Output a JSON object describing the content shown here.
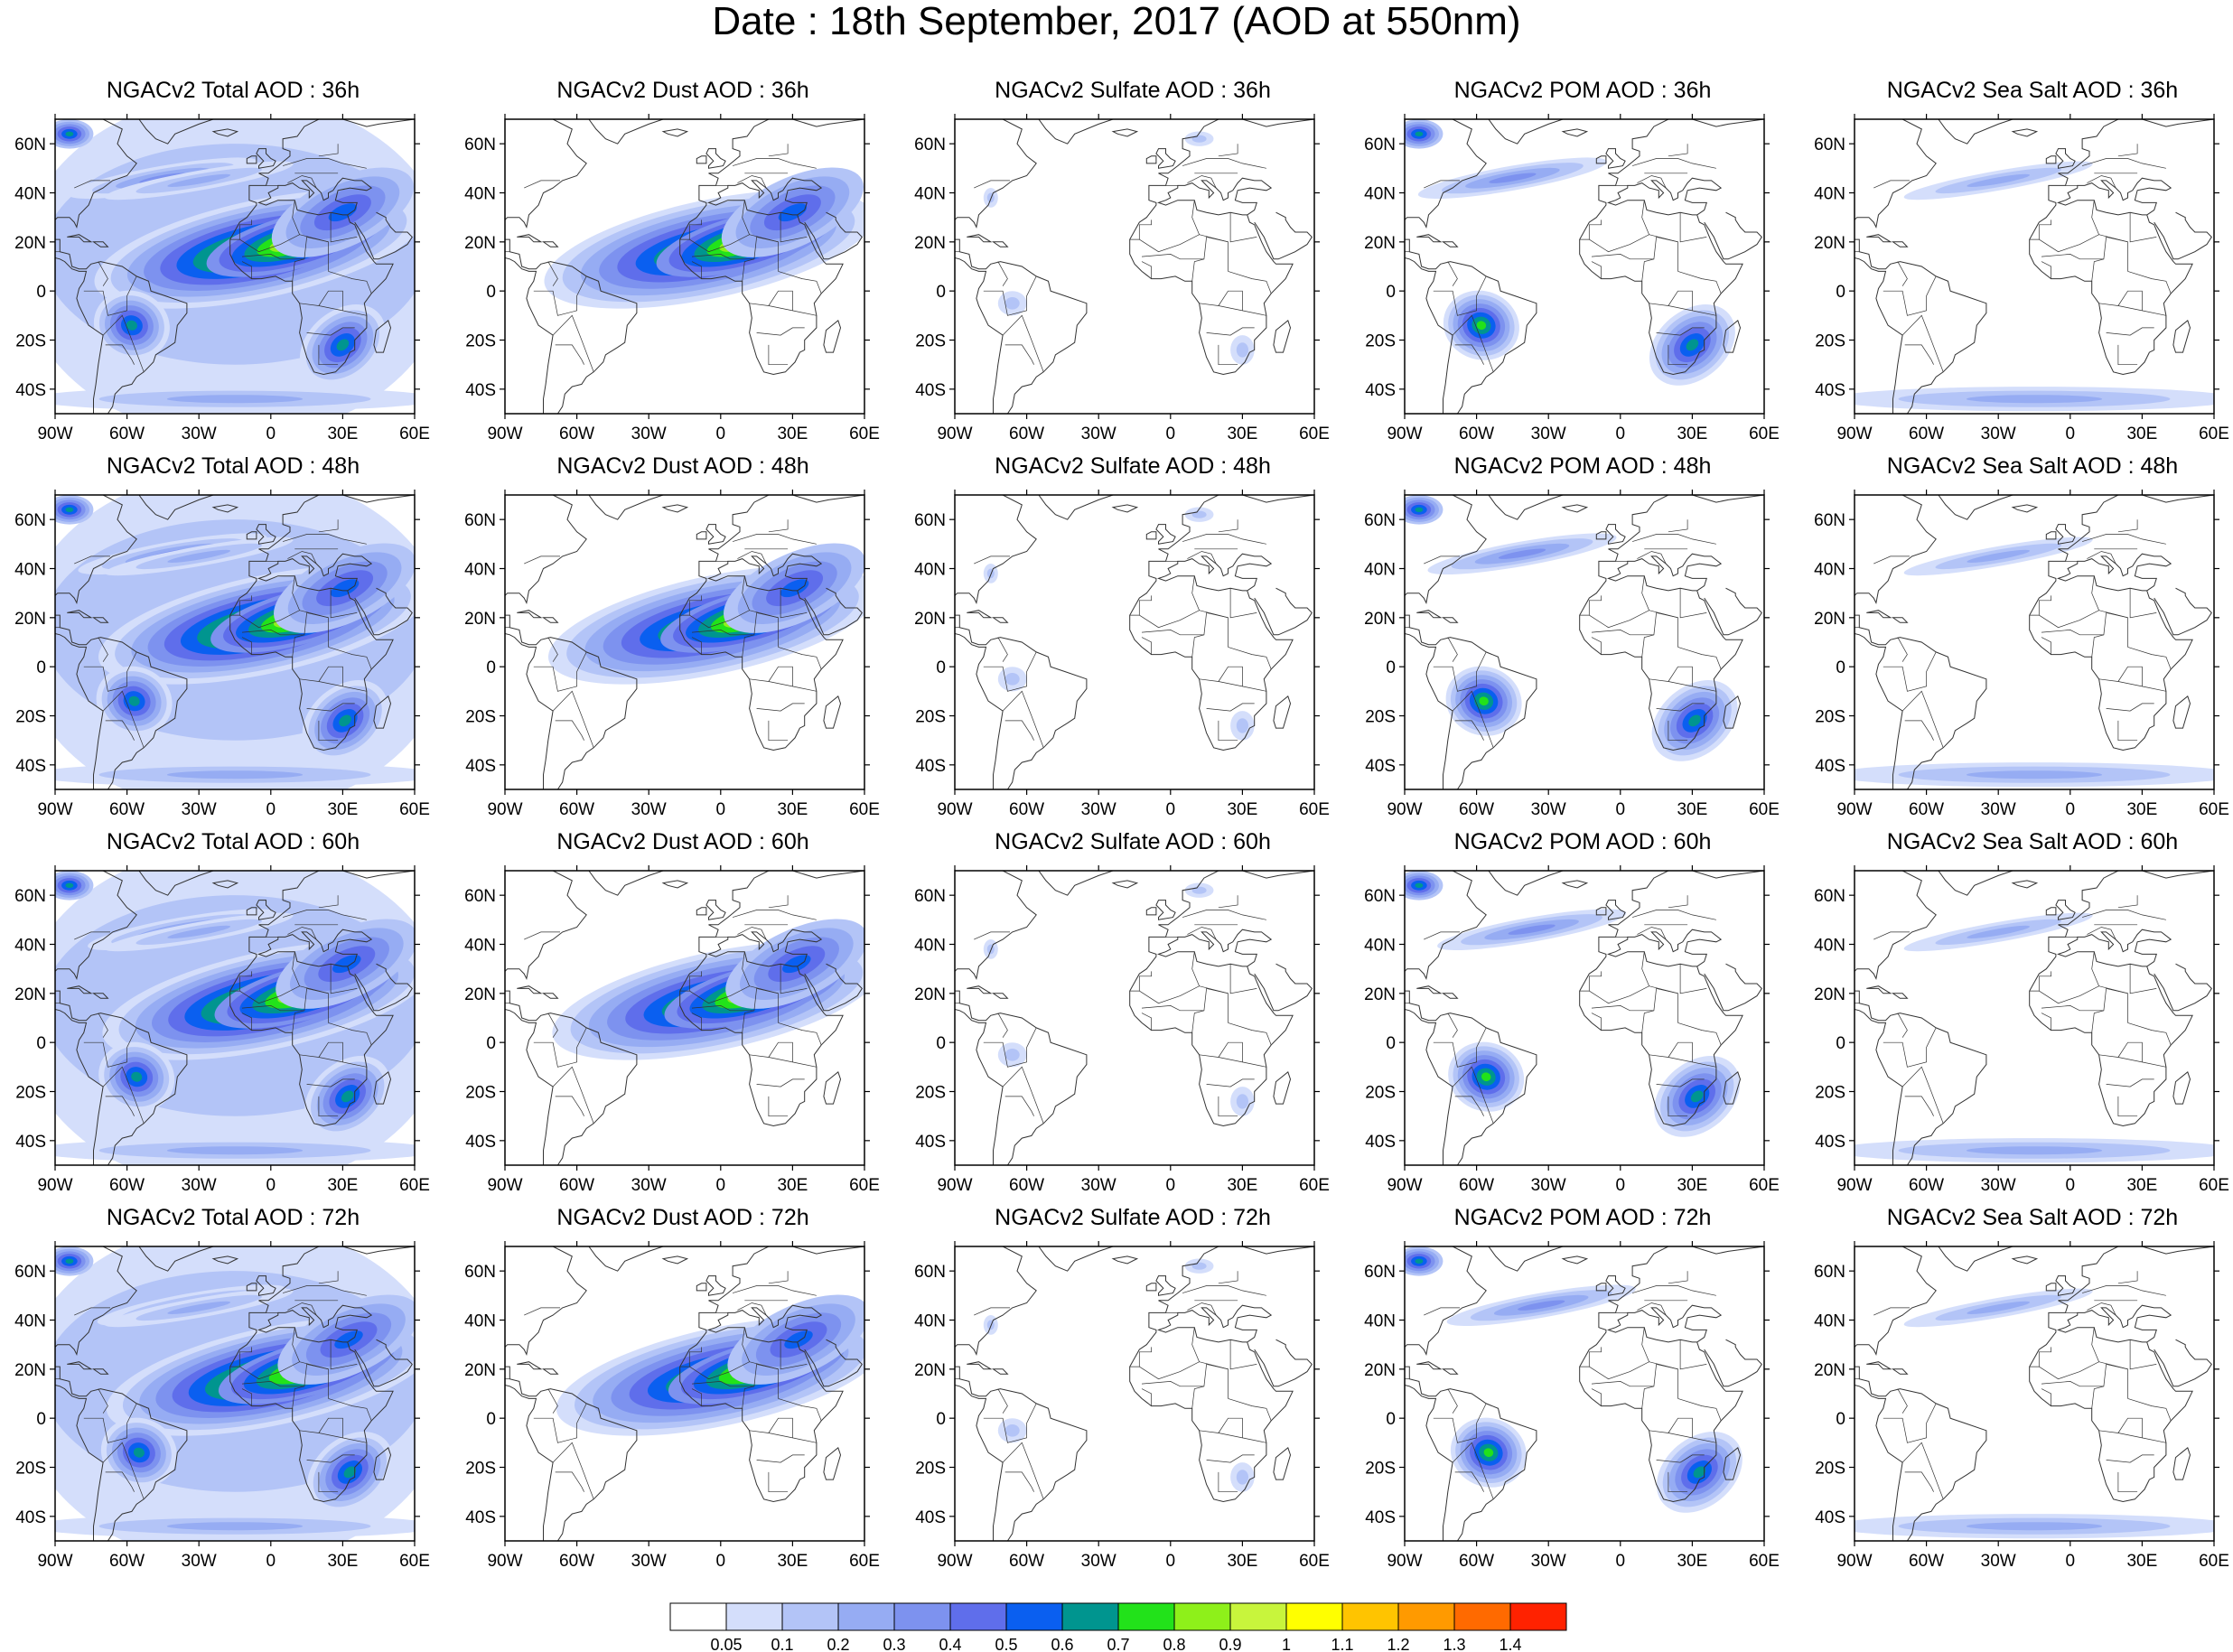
{
  "title": "Date : 18th September, 2017 (AOD at 550nm)",
  "axes": {
    "lon_labels": [
      "90W",
      "60W",
      "30W",
      "0",
      "30E",
      "60E"
    ],
    "lat_labels": [
      "60N",
      "40N",
      "20N",
      "0",
      "20S",
      "40S"
    ],
    "lon_range": [
      -90,
      60
    ],
    "lat_range": [
      -50,
      70
    ]
  },
  "panels": [
    {
      "row": 0,
      "col": 0,
      "title": "NGACv2 Total AOD : 36h",
      "species": "total",
      "hour": 36
    },
    {
      "row": 0,
      "col": 1,
      "title": "NGACv2 Dust AOD : 36h",
      "species": "dust",
      "hour": 36
    },
    {
      "row": 0,
      "col": 2,
      "title": "NGACv2 Sulfate AOD : 36h",
      "species": "sulfate",
      "hour": 36
    },
    {
      "row": 0,
      "col": 3,
      "title": "NGACv2 POM AOD : 36h",
      "species": "pom",
      "hour": 36
    },
    {
      "row": 0,
      "col": 4,
      "title": "NGACv2 Sea Salt AOD : 36h",
      "species": "seasalt",
      "hour": 36
    },
    {
      "row": 1,
      "col": 0,
      "title": "NGACv2 Total AOD : 48h",
      "species": "total",
      "hour": 48
    },
    {
      "row": 1,
      "col": 1,
      "title": "NGACv2 Dust AOD : 48h",
      "species": "dust",
      "hour": 48
    },
    {
      "row": 1,
      "col": 2,
      "title": "NGACv2 Sulfate AOD : 48h",
      "species": "sulfate",
      "hour": 48
    },
    {
      "row": 1,
      "col": 3,
      "title": "NGACv2 POM AOD : 48h",
      "species": "pom",
      "hour": 48
    },
    {
      "row": 1,
      "col": 4,
      "title": "NGACv2 Sea Salt AOD : 48h",
      "species": "seasalt",
      "hour": 48
    },
    {
      "row": 2,
      "col": 0,
      "title": "NGACv2 Total AOD : 60h",
      "species": "total",
      "hour": 60
    },
    {
      "row": 2,
      "col": 1,
      "title": "NGACv2 Dust AOD : 60h",
      "species": "dust",
      "hour": 60
    },
    {
      "row": 2,
      "col": 2,
      "title": "NGACv2 Sulfate AOD : 60h",
      "species": "sulfate",
      "hour": 60
    },
    {
      "row": 2,
      "col": 3,
      "title": "NGACv2 POM AOD : 60h",
      "species": "pom",
      "hour": 60
    },
    {
      "row": 2,
      "col": 4,
      "title": "NGACv2 Sea Salt AOD : 60h",
      "species": "seasalt",
      "hour": 60
    },
    {
      "row": 3,
      "col": 0,
      "title": "NGACv2 Total AOD : 72h",
      "species": "total",
      "hour": 72
    },
    {
      "row": 3,
      "col": 1,
      "title": "NGACv2 Dust AOD : 72h",
      "species": "dust",
      "hour": 72
    },
    {
      "row": 3,
      "col": 2,
      "title": "NGACv2 Sulfate AOD : 72h",
      "species": "sulfate",
      "hour": 72
    },
    {
      "row": 3,
      "col": 3,
      "title": "NGACv2 POM AOD : 72h",
      "species": "pom",
      "hour": 72
    },
    {
      "row": 3,
      "col": 4,
      "title": "NGACv2 Sea Salt  AOD : 72h",
      "species": "seasalt",
      "hour": 72
    }
  ],
  "colorbar": {
    "labels": [
      "0.05",
      "0.1",
      "0.2",
      "0.3",
      "0.4",
      "0.5",
      "0.6",
      "0.7",
      "0.8",
      "0.9",
      "1",
      "1.1",
      "1.2",
      "1.3",
      "1.4"
    ],
    "colors": [
      "#ffffff",
      "#d4defb",
      "#b3c4f7",
      "#96acf3",
      "#7d92ef",
      "#5f6eeb",
      "#0a5ff0",
      "#00958f",
      "#22e21a",
      "#8ef01a",
      "#c8f53c",
      "#ffff00",
      "#ffc400",
      "#ff9a00",
      "#ff6a00",
      "#ff2200"
    ]
  }
}
